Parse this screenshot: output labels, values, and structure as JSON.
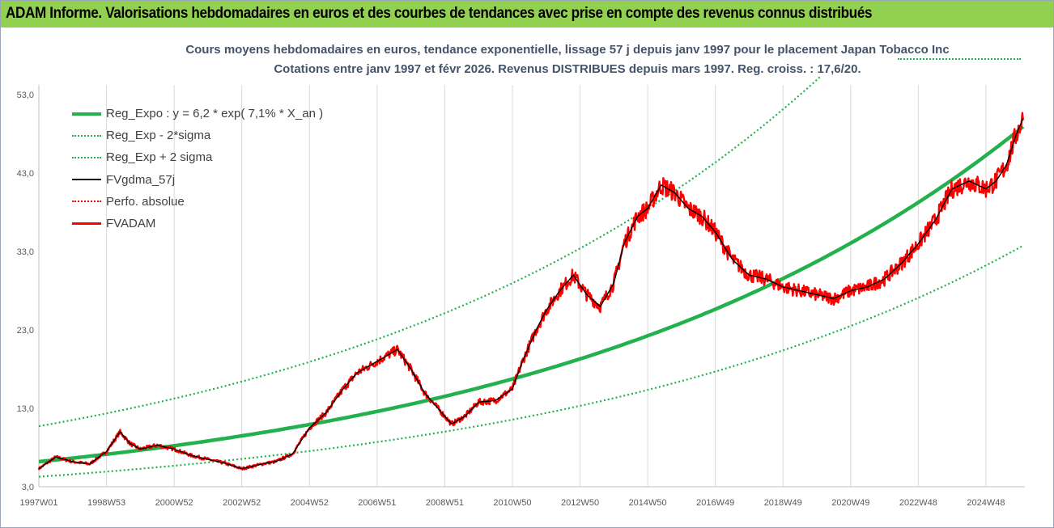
{
  "banner": {
    "title": "ADAM Informe. Valorisations hebdomadaires en euros et des courbes de tendances avec prise en compte des revenus connus distribués"
  },
  "chart_data": {
    "type": "line",
    "title": "Cours moyens hebdomadaires en euros, tendance exponentielle, lissage 57 j depuis janv 1997 pour le placement Japan Tobacco Inc",
    "subtitle": "Cotations entre janv 1997 et févr 2026. Revenus DISTRIBUES depuis mars 1997. Reg. croiss. : 17,6/20.",
    "xlabel": "",
    "ylabel": "",
    "ylim": [
      3,
      55.5
    ],
    "xlim": [
      1997.0,
      2026.15
    ],
    "y_ticks": [
      "3,0",
      "13,0",
      "23,0",
      "33,0",
      "43,0",
      "53,0"
    ],
    "y_tick_values": [
      3,
      13,
      23,
      33,
      43,
      53
    ],
    "x_ticks": [
      "1997W01",
      "1998W53",
      "2000W52",
      "2002W52",
      "2004W52",
      "2006W51",
      "2008W51",
      "2010W50",
      "2012W50",
      "2014W50",
      "2016W49",
      "2018W49",
      "2020W49",
      "2022W48",
      "2024W48"
    ],
    "x_tick_values": [
      1997.0,
      1999.0,
      2001.0,
      2003.0,
      2005.0,
      2007.0,
      2009.0,
      2011.0,
      2013.0,
      2015.0,
      2017.0,
      2019.0,
      2021.0,
      2023.0,
      2025.0
    ],
    "grid": "vertical",
    "legend_position": "top-left",
    "regression": {
      "a": 6.2,
      "rate": 0.071,
      "sigma_low_factor": 0.69,
      "sigma_high_factor": 1.73
    },
    "series": [
      {
        "name": "Reg_Expo : y = 6,2 * exp( 7,1% *  X_an )",
        "style": "thick",
        "color": "#22b14c"
      },
      {
        "name": "Reg_Exp - 2*sigma",
        "style": "dotted",
        "color": "#22b14c"
      },
      {
        "name": "Reg_Exp + 2 sigma",
        "style": "dotted",
        "color": "#22b14c"
      },
      {
        "name": "FVgdma_57j",
        "style": "solid",
        "color": "#000000"
      },
      {
        "name": "Perfo. absolue",
        "style": "dotted",
        "color": "#ff0000"
      },
      {
        "name": "FVADAM",
        "style": "thick",
        "color": "#ff0000",
        "x": [
          1997.0,
          1997.5,
          1998.0,
          1998.5,
          1999.0,
          1999.4,
          1999.7,
          2000.0,
          2000.5,
          2001.0,
          2001.5,
          2002.0,
          2002.5,
          2003.0,
          2003.3,
          2003.7,
          2004.0,
          2004.5,
          2005.0,
          2005.5,
          2006.0,
          2006.4,
          2006.8,
          2007.2,
          2007.6,
          2008.0,
          2008.4,
          2008.8,
          2009.2,
          2009.6,
          2010.0,
          2010.5,
          2011.0,
          2011.3,
          2011.7,
          2012.0,
          2012.4,
          2012.8,
          2013.2,
          2013.6,
          2014.0,
          2014.3,
          2014.7,
          2015.0,
          2015.4,
          2015.8,
          2016.2,
          2016.6,
          2017.0,
          2017.5,
          2018.0,
          2018.5,
          2019.0,
          2019.5,
          2020.0,
          2020.5,
          2021.0,
          2021.5,
          2022.0,
          2022.5,
          2023.0,
          2023.5,
          2024.0,
          2024.5,
          2025.0,
          2025.3,
          2025.6,
          2025.9,
          2026.1
        ],
        "values": [
          5.3,
          6.8,
          6.2,
          5.9,
          7.5,
          10.0,
          8.5,
          7.8,
          8.3,
          7.8,
          7.0,
          6.5,
          6.0,
          5.3,
          5.6,
          6.0,
          6.2,
          7.2,
          10.5,
          12.5,
          15.5,
          17.5,
          18.5,
          19.5,
          20.5,
          18.0,
          15.0,
          13.0,
          11.0,
          12.0,
          13.8,
          14.0,
          15.5,
          19.0,
          23.0,
          25.5,
          28.0,
          30.0,
          27.5,
          26.0,
          29.0,
          34.0,
          37.5,
          38.5,
          41.5,
          40.5,
          38.5,
          37.5,
          35.5,
          32.0,
          30.0,
          29.5,
          28.5,
          28.0,
          27.5,
          27.0,
          28.0,
          28.5,
          29.5,
          31.5,
          34.0,
          37.0,
          41.0,
          42.0,
          41.0,
          42.0,
          44.0,
          48.0,
          50.0
        ]
      }
    ]
  }
}
